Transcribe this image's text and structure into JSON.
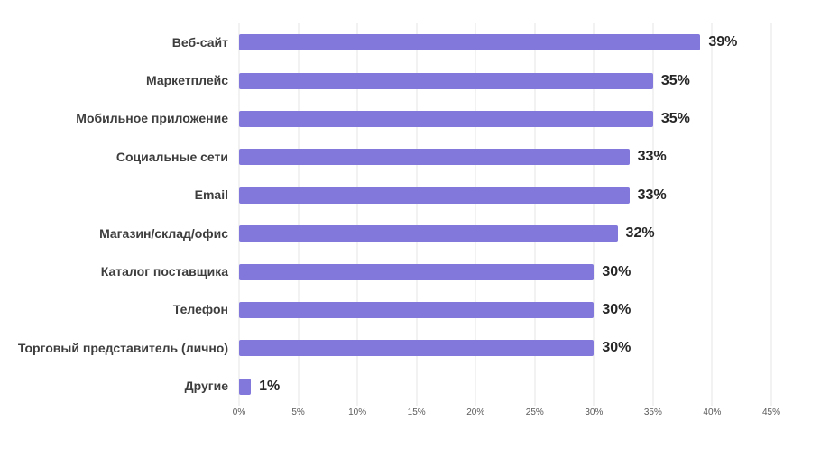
{
  "chart_data": {
    "type": "bar",
    "orientation": "horizontal",
    "title": "",
    "categories": [
      "Веб-сайт",
      "Маркетплейс",
      "Мобильное приложение",
      "Социальные сети",
      "Email",
      "Магазин/склад/офис",
      "Каталог поставщика",
      "Телефон",
      "Торговый представитель (лично)",
      "Другие"
    ],
    "values": [
      39,
      35,
      35,
      33,
      33,
      32,
      30,
      30,
      30,
      1
    ],
    "value_labels": [
      "39%",
      "35%",
      "35%",
      "33%",
      "33%",
      "32%",
      "30%",
      "30%",
      "30%",
      "1%"
    ],
    "x_ticks": [
      "0%",
      "5%",
      "10%",
      "15%",
      "20%",
      "25%",
      "30%",
      "35%",
      "40%",
      "45%"
    ],
    "x_tick_values": [
      0,
      5,
      10,
      15,
      20,
      25,
      30,
      35,
      40,
      45
    ],
    "xlim": [
      0,
      45
    ],
    "grid": true,
    "legend": "none",
    "bar_color": "#8278DB",
    "gridline_color": "#e4e4e4",
    "background_color": "#ffffff"
  }
}
